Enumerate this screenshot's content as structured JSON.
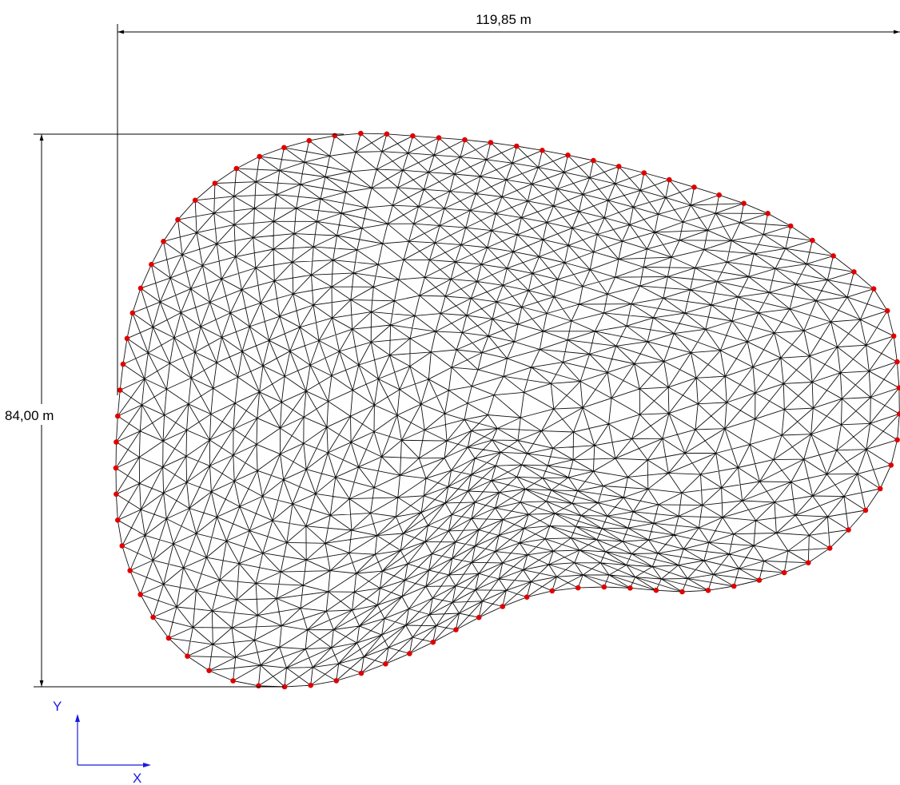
{
  "dimensions": {
    "width": "119,85 m",
    "height": "84,00 m"
  },
  "axes": {
    "y": "Y",
    "x": "X"
  }
}
